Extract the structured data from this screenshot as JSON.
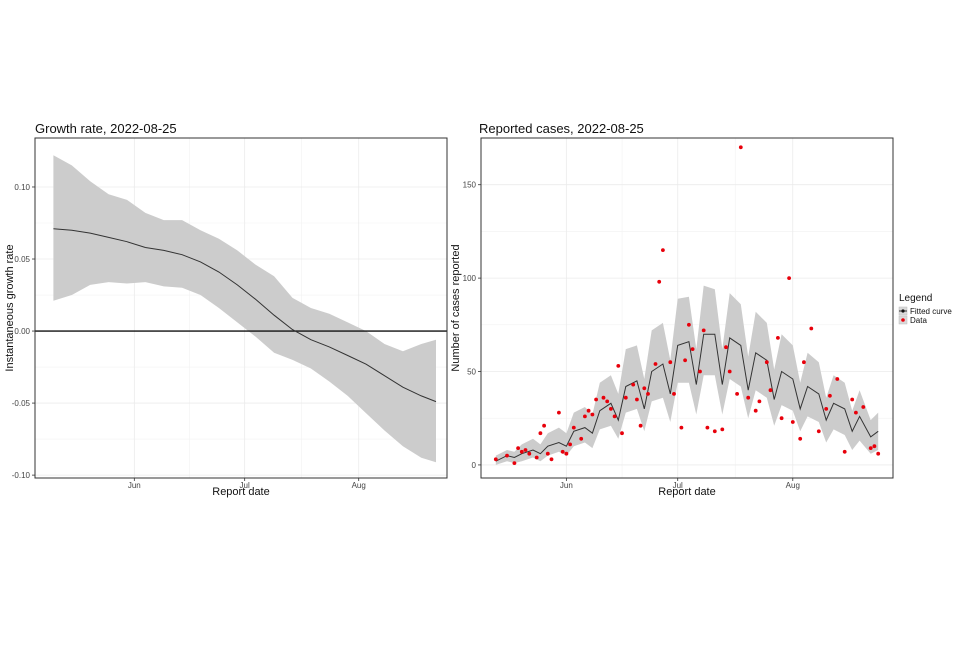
{
  "chart_data": [
    {
      "type": "line",
      "title": "Growth rate, 2022-08-25",
      "xlabel": "Report date",
      "ylabel": "Instantaneous growth rate",
      "x_range": [
        "2022-05-05",
        "2022-08-25"
      ],
      "ylim": [
        -0.102,
        0.134
      ],
      "y_ticks": [
        -0.1,
        -0.05,
        0.0,
        0.05,
        0.1
      ],
      "y_tick_labels": [
        "-0.10",
        "-0.05",
        "0.00",
        "0.05",
        "0.10"
      ],
      "x_ticks": [
        "2022-06-01",
        "2022-07-01",
        "2022-08-01"
      ],
      "x_tick_labels": [
        "Jun",
        "Jul",
        "Aug"
      ],
      "hline": 0,
      "grid": true,
      "band_color": "#cccccc",
      "line_color": "#333333",
      "series": [
        {
          "role": "estimate",
          "x": [
            "2022-05-10",
            "2022-05-15",
            "2022-05-20",
            "2022-05-25",
            "2022-05-30",
            "2022-06-04",
            "2022-06-09",
            "2022-06-14",
            "2022-06-19",
            "2022-06-24",
            "2022-06-29",
            "2022-07-04",
            "2022-07-09",
            "2022-07-14",
            "2022-07-19",
            "2022-07-24",
            "2022-07-29",
            "2022-08-03",
            "2022-08-08",
            "2022-08-13",
            "2022-08-18",
            "2022-08-22"
          ],
          "y": [
            0.071,
            0.07,
            0.068,
            0.065,
            0.062,
            0.058,
            0.056,
            0.053,
            0.048,
            0.041,
            0.032,
            0.022,
            0.011,
            0.001,
            -0.006,
            -0.011,
            -0.017,
            -0.023,
            -0.031,
            -0.039,
            -0.045,
            -0.049
          ],
          "lower": [
            0.021,
            0.025,
            0.032,
            0.034,
            0.033,
            0.034,
            0.031,
            0.03,
            0.025,
            0.016,
            0.006,
            -0.004,
            -0.015,
            -0.02,
            -0.026,
            -0.035,
            -0.045,
            -0.057,
            -0.069,
            -0.08,
            -0.088,
            -0.091
          ],
          "upper": [
            0.122,
            0.115,
            0.104,
            0.095,
            0.091,
            0.082,
            0.077,
            0.077,
            0.07,
            0.064,
            0.056,
            0.046,
            0.038,
            0.023,
            0.016,
            0.012,
            0.006,
            0.0,
            -0.009,
            -0.014,
            -0.009,
            -0.006
          ]
        }
      ]
    },
    {
      "type": "line",
      "title": "Reported cases, 2022-08-25",
      "xlabel": "Report date",
      "ylabel": "Number of cases reported",
      "x_range": [
        "2022-05-09",
        "2022-08-28"
      ],
      "ylim": [
        -7,
        175
      ],
      "y_ticks": [
        0,
        50,
        100,
        150
      ],
      "y_tick_labels": [
        "0",
        "50",
        "100",
        "150"
      ],
      "x_ticks": [
        "2022-06-01",
        "2022-07-01",
        "2022-08-01"
      ],
      "x_tick_labels": [
        "Jun",
        "Jul",
        "Aug"
      ],
      "grid": true,
      "band_color": "#cccccc",
      "line_color": "#333333",
      "point_color": "#e8000b",
      "legend": {
        "title": "Legend",
        "position": "right",
        "entries": [
          "Fitted curve",
          "Data"
        ]
      },
      "series": [
        {
          "name": "Fitted curve",
          "x": [
            "2022-05-13",
            "2022-05-16",
            "2022-05-18",
            "2022-05-20",
            "2022-05-23",
            "2022-05-25",
            "2022-05-27",
            "2022-05-30",
            "2022-06-01",
            "2022-06-03",
            "2022-06-06",
            "2022-06-08",
            "2022-06-10",
            "2022-06-13",
            "2022-06-15",
            "2022-06-17",
            "2022-06-20",
            "2022-06-22",
            "2022-06-24",
            "2022-06-27",
            "2022-06-29",
            "2022-07-01",
            "2022-07-04",
            "2022-07-06",
            "2022-07-08",
            "2022-07-11",
            "2022-07-13",
            "2022-07-15",
            "2022-07-18",
            "2022-07-20",
            "2022-07-22",
            "2022-07-25",
            "2022-07-27",
            "2022-07-29",
            "2022-08-01",
            "2022-08-03",
            "2022-08-05",
            "2022-08-08",
            "2022-08-10",
            "2022-08-12",
            "2022-08-15",
            "2022-08-17",
            "2022-08-19",
            "2022-08-22",
            "2022-08-24"
          ],
          "y": [
            2,
            5,
            4,
            6,
            8,
            6,
            10,
            12,
            10,
            18,
            20,
            17,
            29,
            33,
            24,
            42,
            45,
            30,
            50,
            54,
            38,
            64,
            66,
            43,
            70,
            70,
            43,
            68,
            64,
            40,
            60,
            56,
            35,
            50,
            46,
            30,
            42,
            38,
            24,
            33,
            30,
            18,
            26,
            15,
            18
          ],
          "lower": [
            0,
            2,
            1,
            2,
            4,
            2,
            5,
            7,
            5,
            10,
            12,
            9,
            19,
            21,
            14,
            28,
            30,
            18,
            34,
            36,
            23,
            44,
            44,
            27,
            48,
            48,
            27,
            46,
            42,
            25,
            40,
            36,
            21,
            32,
            29,
            18,
            26,
            23,
            12,
            19,
            16,
            8,
            13,
            6,
            8
          ],
          "upper": [
            5,
            8,
            7,
            11,
            14,
            11,
            17,
            20,
            17,
            28,
            31,
            27,
            44,
            48,
            38,
            62,
            64,
            46,
            72,
            76,
            56,
            89,
            90,
            62,
            96,
            94,
            62,
            92,
            86,
            58,
            82,
            76,
            51,
            70,
            64,
            44,
            60,
            55,
            36,
            48,
            44,
            29,
            40,
            24,
            28
          ]
        },
        {
          "name": "Data",
          "x": [
            "2022-05-13",
            "2022-05-16",
            "2022-05-18",
            "2022-05-19",
            "2022-05-20",
            "2022-05-21",
            "2022-05-22",
            "2022-05-24",
            "2022-05-25",
            "2022-05-26",
            "2022-05-27",
            "2022-05-28",
            "2022-05-30",
            "2022-05-31",
            "2022-06-01",
            "2022-06-02",
            "2022-06-03",
            "2022-06-05",
            "2022-06-06",
            "2022-06-07",
            "2022-06-08",
            "2022-06-09",
            "2022-06-11",
            "2022-06-12",
            "2022-06-13",
            "2022-06-14",
            "2022-06-15",
            "2022-06-16",
            "2022-06-17",
            "2022-06-19",
            "2022-06-20",
            "2022-06-21",
            "2022-06-22",
            "2022-06-23",
            "2022-06-25",
            "2022-06-26",
            "2022-06-27",
            "2022-06-29",
            "2022-06-30",
            "2022-07-02",
            "2022-07-03",
            "2022-07-04",
            "2022-07-05",
            "2022-07-07",
            "2022-07-08",
            "2022-07-09",
            "2022-07-11",
            "2022-07-13",
            "2022-07-14",
            "2022-07-15",
            "2022-07-17",
            "2022-07-18",
            "2022-07-20",
            "2022-07-22",
            "2022-07-23",
            "2022-07-25",
            "2022-07-26",
            "2022-07-28",
            "2022-07-29",
            "2022-07-31",
            "2022-08-01",
            "2022-08-03",
            "2022-08-04",
            "2022-08-06",
            "2022-08-08",
            "2022-08-10",
            "2022-08-11",
            "2022-08-13",
            "2022-08-15",
            "2022-08-17",
            "2022-08-18",
            "2022-08-20",
            "2022-08-22",
            "2022-08-23",
            "2022-08-24"
          ],
          "y": [
            3,
            5,
            1,
            9,
            7,
            8,
            6,
            4,
            17,
            21,
            6,
            3,
            28,
            7,
            6,
            11,
            20,
            14,
            26,
            29,
            27,
            35,
            36,
            34,
            30,
            26,
            53,
            17,
            36,
            43,
            35,
            21,
            41,
            38,
            54,
            98,
            115,
            55,
            38,
            20,
            56,
            75,
            62,
            50,
            72,
            20,
            18,
            19,
            63,
            50,
            38,
            170,
            36,
            29,
            34,
            55,
            40,
            68,
            25,
            100,
            23,
            14,
            55,
            73,
            18,
            30,
            37,
            46,
            7,
            35,
            28,
            31,
            9,
            10,
            6
          ]
        }
      ]
    }
  ]
}
